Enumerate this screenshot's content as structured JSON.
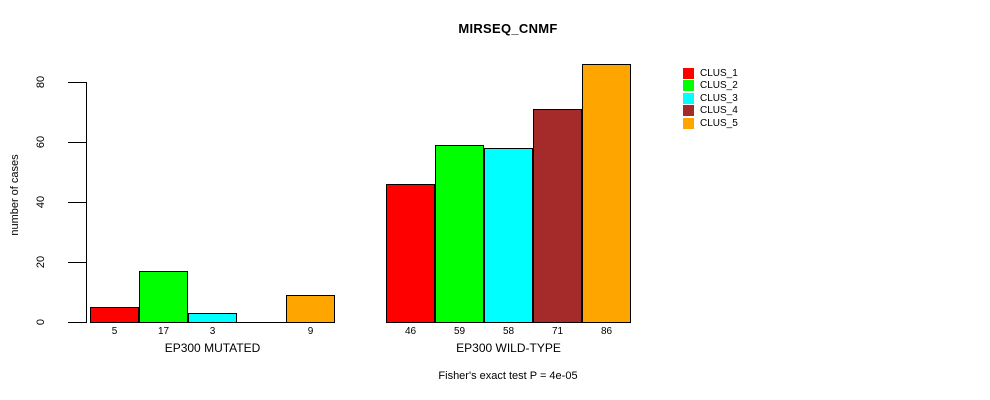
{
  "chart_data": {
    "type": "bar",
    "title": "MIRSEQ_CNMF",
    "ylabel": "number of cases",
    "xlabel": "",
    "yticks": [
      0,
      20,
      40,
      60,
      80
    ],
    "ylim": [
      0,
      86
    ],
    "grid": false,
    "legend_position": "top-right-outside",
    "legend": [
      {
        "name": "CLUS_1",
        "color": "#FF0000"
      },
      {
        "name": "CLUS_2",
        "color": "#00FF00"
      },
      {
        "name": "CLUS_3",
        "color": "#00FFFF"
      },
      {
        "name": "CLUS_4",
        "color": "#A52A2A"
      },
      {
        "name": "CLUS_5",
        "color": "#FFA500"
      }
    ],
    "categories": [
      "EP300 MUTATED",
      "EP300 WILD-TYPE"
    ],
    "series": [
      {
        "name": "CLUS_1",
        "values": [
          5,
          46
        ]
      },
      {
        "name": "CLUS_2",
        "values": [
          17,
          59
        ]
      },
      {
        "name": "CLUS_3",
        "values": [
          3,
          58
        ]
      },
      {
        "name": "CLUS_4",
        "values": [
          0,
          71
        ]
      },
      {
        "name": "CLUS_5",
        "values": [
          9,
          86
        ]
      }
    ],
    "bar_value_labels": [
      [
        "5",
        "17",
        "3",
        "",
        "9"
      ],
      [
        "46",
        "59",
        "58",
        "71",
        "86"
      ]
    ],
    "annotation": "Fisher's exact test P = 4e-05"
  },
  "colors": {
    "background": "#FFFFFF",
    "axis": "#000000",
    "text": "#000000",
    "bar_border": "#000000"
  }
}
